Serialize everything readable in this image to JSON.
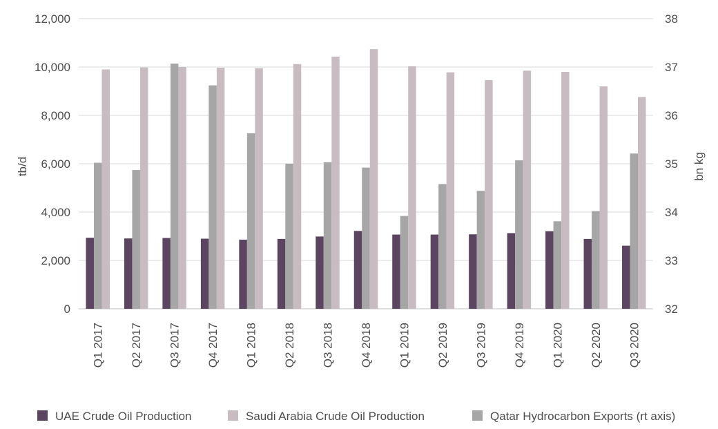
{
  "chart_data": {
    "type": "bar",
    "title": "",
    "xlabel": "",
    "ylabel": "tb/d",
    "y2label": "bn kg",
    "ylim": [
      0,
      12000
    ],
    "y2lim": [
      32,
      38
    ],
    "yticks": [
      "0",
      "2,000",
      "4,000",
      "6,000",
      "8,000",
      "10,000",
      "12,000"
    ],
    "y2ticks": [
      "32",
      "33",
      "34",
      "35",
      "36",
      "37",
      "38"
    ],
    "grid": true,
    "legend_position": "bottom",
    "categories": [
      "Q1 2017",
      "Q2 2017",
      "Q3 2017",
      "Q4 2017",
      "Q1 2018",
      "Q2 2018",
      "Q3 2018",
      "Q4 2018",
      "Q1 2019",
      "Q2 2019",
      "Q3 2019",
      "Q4 2019",
      "Q1 2020",
      "Q2 2020",
      "Q3 2020"
    ],
    "series": [
      {
        "name": "UAE Crude Oil Production",
        "axis": "left",
        "color": "#5c4560",
        "values": [
          2940,
          2910,
          2930,
          2900,
          2860,
          2890,
          2990,
          3220,
          3070,
          3070,
          3080,
          3130,
          3210,
          2890,
          2610
        ]
      },
      {
        "name": "Qatar Hydrocarbon Exports (rt axis)",
        "axis": "right",
        "color": "#a6a6a6",
        "values": [
          35.02,
          34.87,
          37.07,
          36.62,
          35.63,
          35.0,
          35.03,
          34.92,
          33.92,
          34.58,
          34.44,
          35.07,
          33.81,
          34.02,
          35.21
        ]
      },
      {
        "name": "Saudi Arabia Crude Oil Production",
        "axis": "left",
        "color": "#c8bcc2",
        "values": [
          9900,
          9980,
          10000,
          9970,
          9950,
          10120,
          10430,
          10740,
          10030,
          9780,
          9460,
          9850,
          9800,
          9200,
          8760
        ]
      }
    ],
    "legend": [
      {
        "label": "UAE Crude Oil Production",
        "color": "#5c4560"
      },
      {
        "label": "Saudi Arabia Crude Oil Production",
        "color": "#c8bcc2"
      },
      {
        "label": "Qatar Hydrocarbon Exports (rt axis)",
        "color": "#a6a6a6"
      }
    ],
    "colors": {
      "grid": "#d9d9d9",
      "axis": "#bfbfbf",
      "text": "#4d4d4d"
    }
  }
}
